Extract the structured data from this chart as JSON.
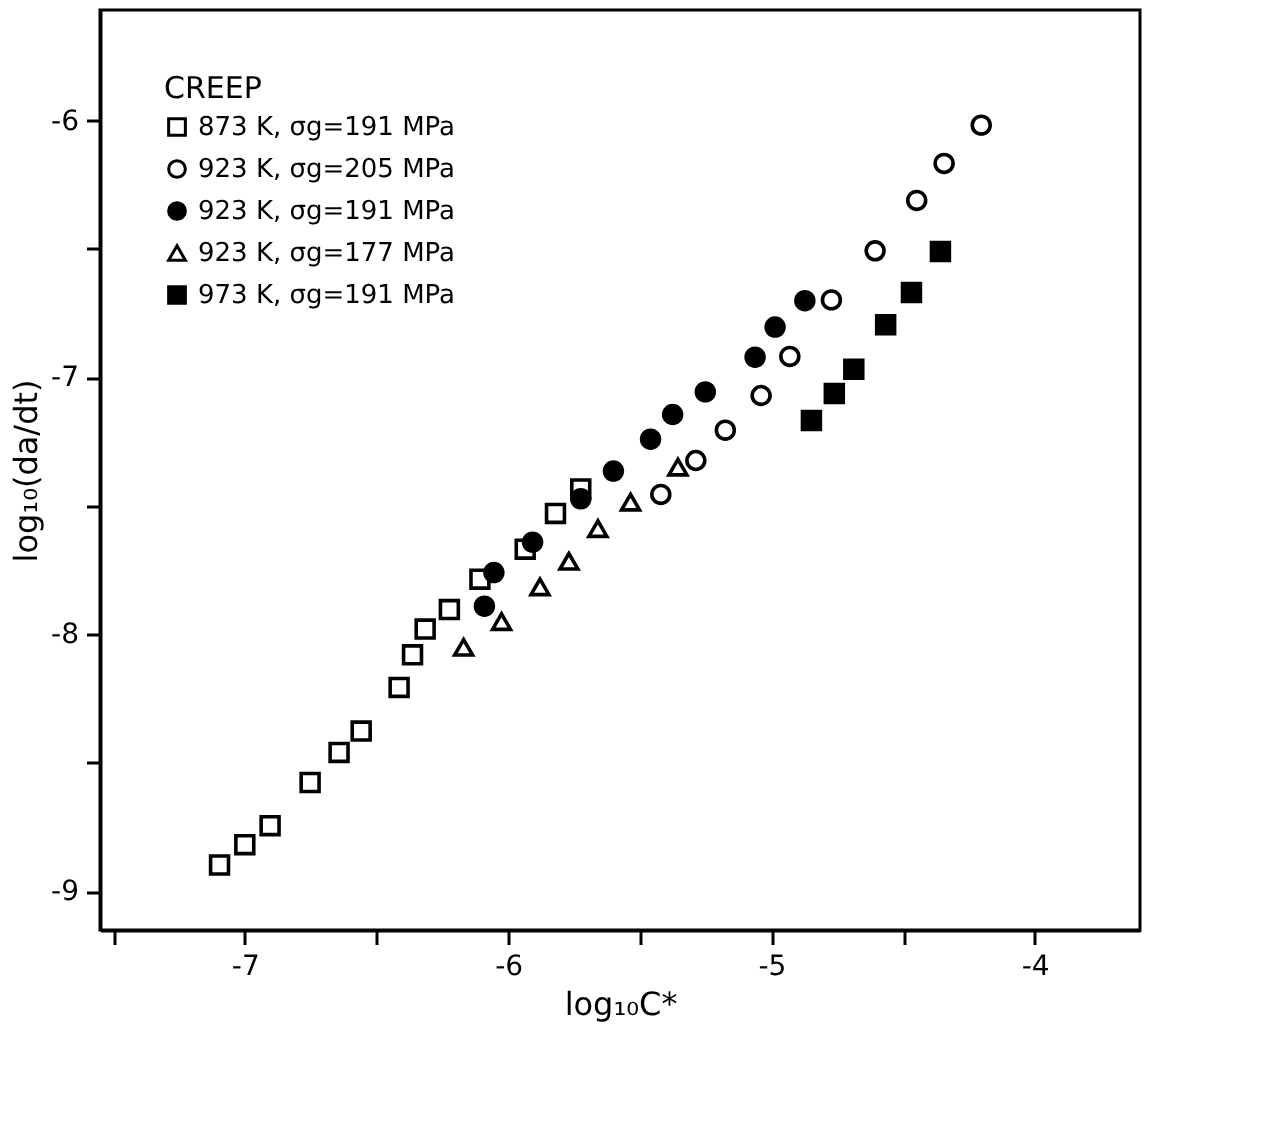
{
  "chart_data": {
    "type": "scatter",
    "xlabel": "log₁₀C*",
    "ylabel": "log₁₀(da/dt)",
    "legend_title": "CREEP",
    "legend": "top left",
    "grid": false,
    "xlim": [
      -7.55,
      -3.6
    ],
    "ylim": [
      -9.15,
      -5.57
    ],
    "xticks": [
      {
        "value": -7.5,
        "label": null
      },
      -7,
      {
        "value": -6.5,
        "label": null
      },
      -6,
      {
        "value": -5.5,
        "label": null
      },
      -5,
      {
        "value": -4.5,
        "label": null
      },
      -4
    ],
    "yticks": [
      -9,
      {
        "value": -8.5,
        "label": null
      },
      -8,
      {
        "value": -7.5,
        "label": null
      },
      -7,
      {
        "value": -6.5,
        "label": null
      },
      -6
    ],
    "series": [
      {
        "name": "873 K, σg=191 MPa",
        "color": "#ffffff",
        "marker": "square",
        "x": [
          -7.096,
          -7.0,
          -6.904,
          -6.752,
          -6.642,
          -6.558,
          -6.414,
          -6.363,
          -6.315,
          -6.223,
          -6.107,
          -5.935,
          -5.82,
          -5.724
        ],
        "values": [
          -8.897,
          -8.818,
          -8.744,
          -8.576,
          -8.459,
          -8.376,
          -8.206,
          -8.079,
          -7.979,
          -7.903,
          -7.785,
          -7.668,
          -7.529,
          -7.434
        ]
      },
      {
        "name": "923 K, σg=205 MPa",
        "color": "#ffffff",
        "marker": "circle",
        "x": [
          -5.42,
          -5.287,
          -5.175,
          -5.039,
          -4.93,
          -4.772,
          -4.606,
          -4.448,
          -4.344,
          -4.203
        ],
        "values": [
          -7.455,
          -7.323,
          -7.205,
          -7.07,
          -6.918,
          -6.698,
          -6.507,
          -6.311,
          -6.167,
          -6.018
        ]
      },
      {
        "name": "923 K, σg=191 MPa",
        "color": "#000000",
        "marker": "circle",
        "x": [
          -6.09,
          -6.054,
          -5.907,
          -5.724,
          -5.6,
          -5.459,
          -5.375,
          -5.251,
          -5.062,
          -4.986,
          -4.873
        ],
        "values": [
          -7.89,
          -7.759,
          -7.641,
          -7.472,
          -7.364,
          -7.24,
          -7.144,
          -7.056,
          -6.921,
          -6.804,
          -6.701
        ]
      },
      {
        "name": "923 K, σg=177 MPa",
        "color": "#ffffff",
        "marker": "triangle",
        "x": [
          -6.169,
          -6.025,
          -5.879,
          -5.769,
          -5.659,
          -5.535,
          -5.355
        ],
        "values": [
          -8.05,
          -7.95,
          -7.815,
          -7.715,
          -7.588,
          -7.485,
          -7.349
        ]
      },
      {
        "name": "973 K, σg=191 MPa",
        "color": "#000000",
        "marker": "square",
        "x": [
          -4.848,
          -4.761,
          -4.687,
          -4.566,
          -4.468,
          -4.358
        ],
        "values": [
          -7.167,
          -7.062,
          -6.968,
          -6.795,
          -6.669,
          -6.51
        ]
      }
    ]
  }
}
